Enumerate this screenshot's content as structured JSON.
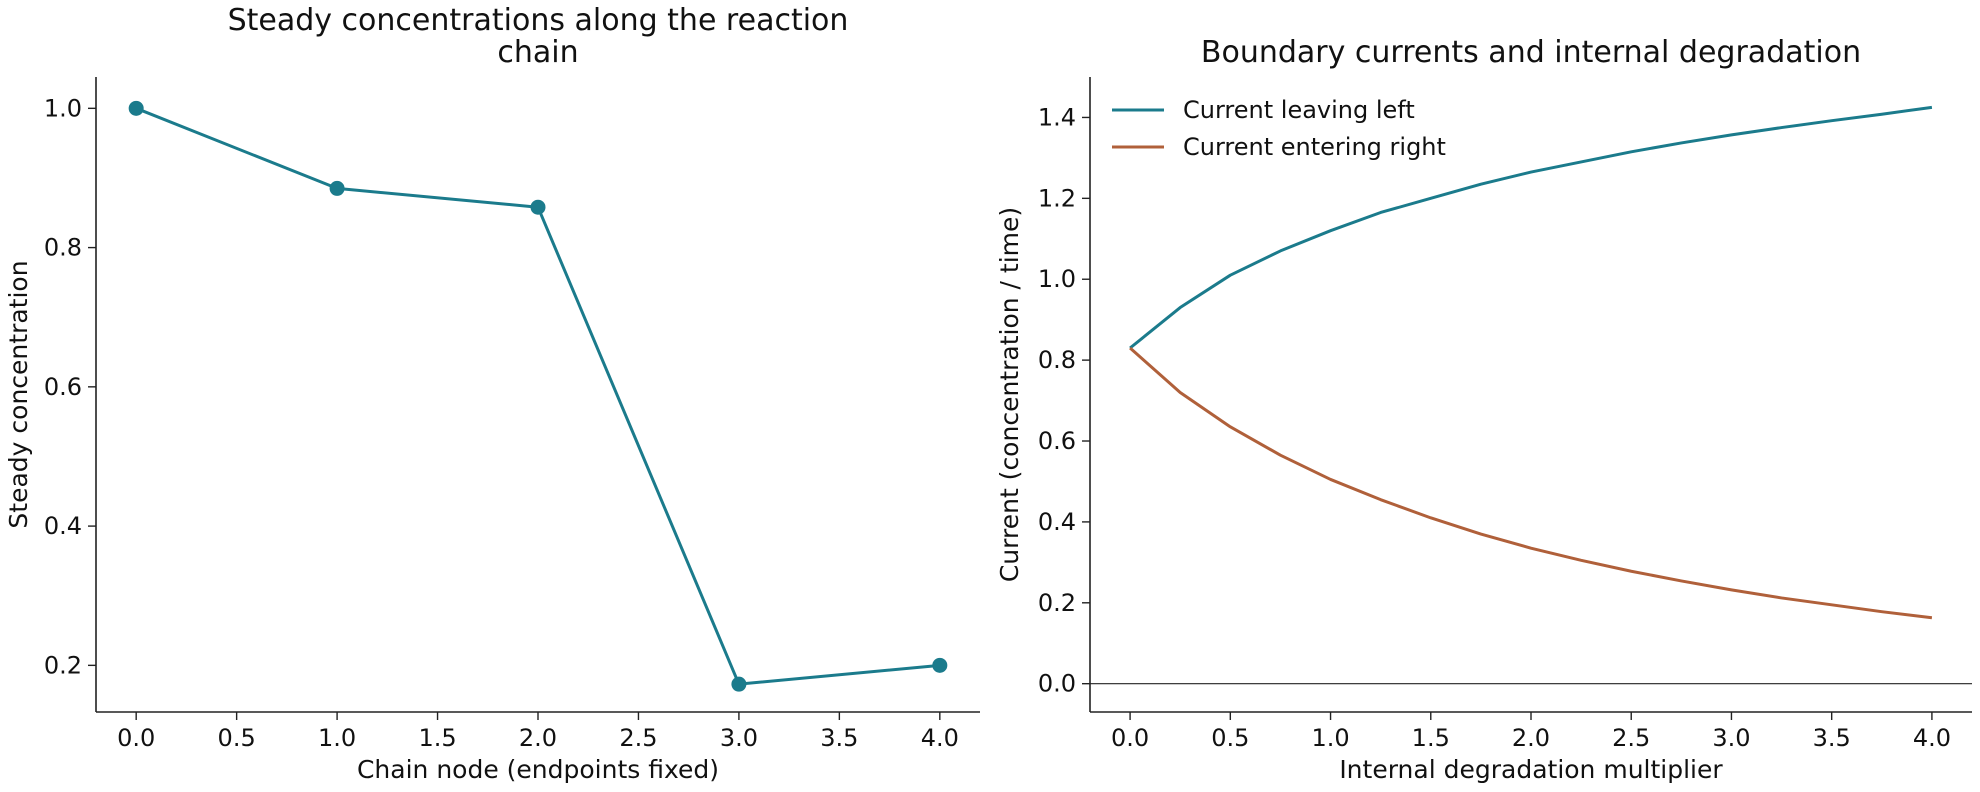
{
  "chart_data": [
    {
      "type": "line",
      "title_lines": [
        "Steady concentrations along the reaction",
        "chain"
      ],
      "xlabel": "Chain node (endpoints fixed)",
      "ylabel": "Steady concentration",
      "xlim": [
        -0.2,
        4.2
      ],
      "ylim": [
        0.133,
        1.045
      ],
      "xticks": [
        0.0,
        0.5,
        1.0,
        1.5,
        2.0,
        2.5,
        3.0,
        3.5,
        4.0
      ],
      "xtick_labels": [
        "0.0",
        "0.5",
        "1.0",
        "1.5",
        "2.0",
        "2.5",
        "3.0",
        "3.5",
        "4.0"
      ],
      "yticks": [
        0.2,
        0.4,
        0.6,
        0.8,
        1.0
      ],
      "ytick_labels": [
        "0.2",
        "0.4",
        "0.6",
        "0.8",
        "1.0"
      ],
      "grid": false,
      "markers": true,
      "series": [
        {
          "x": [
            0,
            1,
            2,
            3,
            4
          ],
          "y": [
            1.0,
            0.885,
            0.858,
            0.173,
            0.2
          ],
          "color": "#1b7b8c"
        }
      ]
    },
    {
      "type": "line",
      "title_lines": [
        "Boundary currents and internal degradation"
      ],
      "xlabel": "Internal degradation multiplier",
      "ylabel": "Current (concentration / time)",
      "xlim": [
        -0.2,
        4.2
      ],
      "ylim": [
        -0.07,
        1.5
      ],
      "xticks": [
        0.0,
        0.5,
        1.0,
        1.5,
        2.0,
        2.5,
        3.0,
        3.5,
        4.0
      ],
      "xtick_labels": [
        "0.0",
        "0.5",
        "1.0",
        "1.5",
        "2.0",
        "2.5",
        "3.0",
        "3.5",
        "4.0"
      ],
      "yticks": [
        0.0,
        0.2,
        0.4,
        0.6,
        0.8,
        1.0,
        1.2,
        1.4
      ],
      "ytick_labels": [
        "0.0",
        "0.2",
        "0.4",
        "0.6",
        "0.8",
        "1.0",
        "1.2",
        "1.4"
      ],
      "grid": false,
      "zero_line": true,
      "legend_position": "upper-left",
      "series": [
        {
          "name": "Current leaving left",
          "color": "#1b7b8c",
          "x": [
            0.0,
            0.25,
            0.5,
            0.75,
            1.0,
            1.25,
            1.5,
            1.75,
            2.0,
            2.25,
            2.5,
            2.75,
            3.0,
            3.25,
            3.5,
            3.75,
            4.0
          ],
          "y": [
            0.83,
            0.93,
            1.01,
            1.07,
            1.12,
            1.165,
            1.2,
            1.235,
            1.265,
            1.29,
            1.315,
            1.337,
            1.357,
            1.375,
            1.392,
            1.408,
            1.425
          ]
        },
        {
          "name": "Current entering right",
          "color": "#b0603a",
          "x": [
            0.0,
            0.25,
            0.5,
            0.75,
            1.0,
            1.25,
            1.5,
            1.75,
            2.0,
            2.25,
            2.5,
            2.75,
            3.0,
            3.25,
            3.5,
            3.75,
            4.0
          ],
          "y": [
            0.83,
            0.72,
            0.635,
            0.565,
            0.505,
            0.455,
            0.41,
            0.37,
            0.335,
            0.305,
            0.278,
            0.254,
            0.232,
            0.212,
            0.195,
            0.178,
            0.163
          ]
        }
      ]
    }
  ]
}
